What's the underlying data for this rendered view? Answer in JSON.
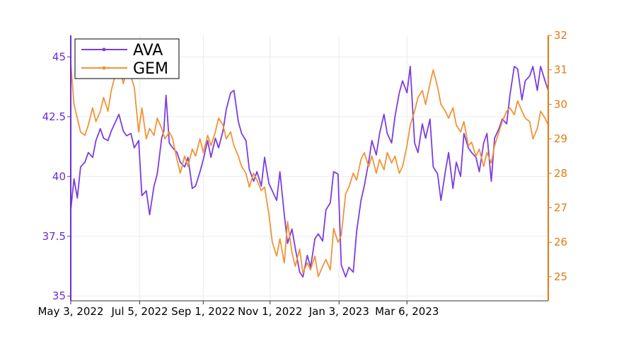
{
  "chart_data": {
    "type": "line",
    "title": "",
    "xlabel": "",
    "legend": {
      "placement": "top-left",
      "entries": [
        "AVA",
        "GEM"
      ]
    },
    "grid": true,
    "x_ticks": [
      "May 3, 2022",
      "Jul 5, 2022",
      "Sep 1, 2022",
      "Nov 1, 2022",
      "Jan 3, 2023",
      "Mar 6, 2023"
    ],
    "y_left": {
      "ticks": [
        "35",
        "37.5",
        "40",
        "42.5",
        "45"
      ],
      "range": [
        34.8,
        45.9
      ],
      "color": "#6a2ed0"
    },
    "y_right": {
      "ticks": [
        "25",
        "26",
        "27",
        "28",
        "29",
        "30",
        "31",
        "32"
      ],
      "range": [
        24.3,
        32.0
      ],
      "color": "#e07b10"
    },
    "series": [
      {
        "name": "AVA",
        "axis": "left",
        "color": "#7a3ee0",
        "points": [
          [
            "2022-05-03",
            38.6
          ],
          [
            "2022-05-06",
            39.9
          ],
          [
            "2022-05-09",
            39.1
          ],
          [
            "2022-05-12",
            40.4
          ],
          [
            "2022-05-16",
            40.6
          ],
          [
            "2022-05-19",
            41.0
          ],
          [
            "2022-05-23",
            40.8
          ],
          [
            "2022-05-26",
            41.5
          ],
          [
            "2022-05-30",
            42.0
          ],
          [
            "2022-06-02",
            41.6
          ],
          [
            "2022-06-06",
            41.5
          ],
          [
            "2022-06-09",
            41.9
          ],
          [
            "2022-06-13",
            42.3
          ],
          [
            "2022-06-16",
            42.6
          ],
          [
            "2022-06-20",
            41.9
          ],
          [
            "2022-06-23",
            41.7
          ],
          [
            "2022-06-27",
            41.8
          ],
          [
            "2022-06-30",
            41.2
          ],
          [
            "2022-07-04",
            41.5
          ],
          [
            "2022-07-07",
            39.2
          ],
          [
            "2022-07-11",
            39.4
          ],
          [
            "2022-07-14",
            38.4
          ],
          [
            "2022-07-18",
            39.6
          ],
          [
            "2022-07-21",
            40.1
          ],
          [
            "2022-07-25",
            41.6
          ],
          [
            "2022-07-27",
            41.9
          ],
          [
            "2022-07-29",
            43.4
          ],
          [
            "2022-08-01",
            41.4
          ],
          [
            "2022-08-04",
            41.2
          ],
          [
            "2022-08-08",
            41.0
          ],
          [
            "2022-08-11",
            40.6
          ],
          [
            "2022-08-15",
            40.4
          ],
          [
            "2022-08-18",
            40.8
          ],
          [
            "2022-08-22",
            39.5
          ],
          [
            "2022-08-25",
            39.6
          ],
          [
            "2022-08-29",
            40.2
          ],
          [
            "2022-09-01",
            40.7
          ],
          [
            "2022-09-05",
            41.5
          ],
          [
            "2022-09-08",
            40.8
          ],
          [
            "2022-09-12",
            41.6
          ],
          [
            "2022-09-15",
            41.2
          ],
          [
            "2022-09-19",
            41.9
          ],
          [
            "2022-09-22",
            42.8
          ],
          [
            "2022-09-26",
            43.5
          ],
          [
            "2022-09-29",
            43.6
          ],
          [
            "2022-10-03",
            42.3
          ],
          [
            "2022-10-06",
            41.8
          ],
          [
            "2022-10-10",
            41.5
          ],
          [
            "2022-10-13",
            40.3
          ],
          [
            "2022-10-17",
            39.8
          ],
          [
            "2022-10-20",
            40.2
          ],
          [
            "2022-10-24",
            39.6
          ],
          [
            "2022-10-27",
            40.8
          ],
          [
            "2022-10-31",
            39.7
          ],
          [
            "2022-11-03",
            39.4
          ],
          [
            "2022-11-07",
            39.0
          ],
          [
            "2022-11-10",
            40.2
          ],
          [
            "2022-11-14",
            38.4
          ],
          [
            "2022-11-17",
            37.2
          ],
          [
            "2022-11-21",
            37.8
          ],
          [
            "2022-11-24",
            37.0
          ],
          [
            "2022-11-28",
            36.0
          ],
          [
            "2022-12-01",
            35.8
          ],
          [
            "2022-12-05",
            36.7
          ],
          [
            "2022-12-08",
            36.2
          ],
          [
            "2022-12-12",
            37.4
          ],
          [
            "2022-12-15",
            37.6
          ],
          [
            "2022-12-19",
            37.3
          ],
          [
            "2022-12-22",
            38.6
          ],
          [
            "2022-12-26",
            38.9
          ],
          [
            "2022-12-29",
            40.2
          ],
          [
            "2023-01-02",
            40.1
          ],
          [
            "2023-01-05",
            36.3
          ],
          [
            "2023-01-09",
            35.8
          ],
          [
            "2023-01-12",
            36.2
          ],
          [
            "2023-01-16",
            36.0
          ],
          [
            "2023-01-19",
            37.7
          ],
          [
            "2023-01-23",
            39.0
          ],
          [
            "2023-01-26",
            39.6
          ],
          [
            "2023-01-30",
            40.6
          ],
          [
            "2023-02-02",
            41.5
          ],
          [
            "2023-02-06",
            40.9
          ],
          [
            "2023-02-09",
            41.8
          ],
          [
            "2023-02-13",
            42.6
          ],
          [
            "2023-02-16",
            41.8
          ],
          [
            "2023-02-20",
            41.4
          ],
          [
            "2023-02-23",
            42.5
          ],
          [
            "2023-02-27",
            43.5
          ],
          [
            "2023-03-02",
            44.0
          ],
          [
            "2023-03-06",
            43.5
          ],
          [
            "2023-03-09",
            44.6
          ],
          [
            "2023-03-13",
            41.4
          ],
          [
            "2023-03-16",
            41.0
          ],
          [
            "2023-03-20",
            42.2
          ],
          [
            "2023-03-23",
            41.6
          ],
          [
            "2023-03-27",
            42.4
          ],
          [
            "2023-03-30",
            40.4
          ],
          [
            "2023-04-03",
            40.1
          ],
          [
            "2023-04-06",
            39.0
          ],
          [
            "2023-04-10",
            40.2
          ],
          [
            "2023-04-13",
            41.0
          ],
          [
            "2023-04-17",
            39.5
          ],
          [
            "2023-04-20",
            40.6
          ],
          [
            "2023-04-24",
            40.0
          ],
          [
            "2023-04-27",
            41.8
          ],
          [
            "2023-05-01",
            41.2
          ],
          [
            "2023-05-04",
            41.0
          ],
          [
            "2023-05-08",
            40.8
          ],
          [
            "2023-05-11",
            40.2
          ],
          [
            "2023-05-15",
            41.4
          ],
          [
            "2023-05-18",
            41.8
          ],
          [
            "2023-05-22",
            39.8
          ],
          [
            "2023-05-25",
            41.6
          ],
          [
            "2023-05-29",
            42.0
          ],
          [
            "2023-06-01",
            42.4
          ],
          [
            "2023-06-05",
            42.2
          ],
          [
            "2023-06-08",
            43.4
          ],
          [
            "2023-06-12",
            44.6
          ],
          [
            "2023-06-15",
            44.5
          ],
          [
            "2023-06-19",
            43.2
          ],
          [
            "2023-06-22",
            44.0
          ],
          [
            "2023-06-26",
            44.2
          ],
          [
            "2023-06-29",
            44.6
          ],
          [
            "2023-07-03",
            43.6
          ],
          [
            "2023-07-06",
            44.6
          ],
          [
            "2023-07-10",
            44.0
          ],
          [
            "2023-07-13",
            43.6
          ]
        ]
      },
      {
        "name": "GEM",
        "axis": "right",
        "color": "#f09438",
        "points": [
          [
            "2022-05-03",
            31.2
          ],
          [
            "2022-05-06",
            30.0
          ],
          [
            "2022-05-09",
            29.6
          ],
          [
            "2022-05-12",
            29.2
          ],
          [
            "2022-05-16",
            29.1
          ],
          [
            "2022-05-19",
            29.4
          ],
          [
            "2022-05-23",
            29.9
          ],
          [
            "2022-05-26",
            29.5
          ],
          [
            "2022-05-30",
            29.8
          ],
          [
            "2022-06-02",
            30.2
          ],
          [
            "2022-06-06",
            29.8
          ],
          [
            "2022-06-09",
            30.4
          ],
          [
            "2022-06-13",
            30.9
          ],
          [
            "2022-06-16",
            31.2
          ],
          [
            "2022-06-20",
            30.6
          ],
          [
            "2022-06-23",
            31.0
          ],
          [
            "2022-06-27",
            30.8
          ],
          [
            "2022-06-30",
            30.5
          ],
          [
            "2022-07-04",
            29.2
          ],
          [
            "2022-07-07",
            29.9
          ],
          [
            "2022-07-11",
            29.0
          ],
          [
            "2022-07-14",
            29.3
          ],
          [
            "2022-07-18",
            29.1
          ],
          [
            "2022-07-21",
            29.6
          ],
          [
            "2022-07-25",
            29.3
          ],
          [
            "2022-07-28",
            29.0
          ],
          [
            "2022-08-01",
            29.2
          ],
          [
            "2022-08-04",
            29.0
          ],
          [
            "2022-08-08",
            28.4
          ],
          [
            "2022-08-11",
            28.0
          ],
          [
            "2022-08-15",
            28.5
          ],
          [
            "2022-08-18",
            28.2
          ],
          [
            "2022-08-22",
            28.7
          ],
          [
            "2022-08-25",
            28.5
          ],
          [
            "2022-08-29",
            29.0
          ],
          [
            "2022-09-01",
            28.6
          ],
          [
            "2022-09-05",
            29.1
          ],
          [
            "2022-09-08",
            28.8
          ],
          [
            "2022-09-12",
            29.2
          ],
          [
            "2022-09-15",
            29.6
          ],
          [
            "2022-09-19",
            29.4
          ],
          [
            "2022-09-22",
            29.0
          ],
          [
            "2022-09-26",
            29.2
          ],
          [
            "2022-09-29",
            28.8
          ],
          [
            "2022-10-03",
            28.5
          ],
          [
            "2022-10-06",
            28.2
          ],
          [
            "2022-10-10",
            28.0
          ],
          [
            "2022-10-13",
            27.6
          ],
          [
            "2022-10-17",
            28.0
          ],
          [
            "2022-10-20",
            27.8
          ],
          [
            "2022-10-24",
            27.5
          ],
          [
            "2022-10-27",
            27.6
          ],
          [
            "2022-10-31",
            26.8
          ],
          [
            "2022-11-03",
            26.0
          ],
          [
            "2022-11-07",
            25.6
          ],
          [
            "2022-11-10",
            26.1
          ],
          [
            "2022-11-14",
            25.4
          ],
          [
            "2022-11-17",
            26.6
          ],
          [
            "2022-11-21",
            25.7
          ],
          [
            "2022-11-24",
            25.3
          ],
          [
            "2022-11-28",
            25.8
          ],
          [
            "2022-12-01",
            25.1
          ],
          [
            "2022-12-05",
            25.4
          ],
          [
            "2022-12-08",
            25.2
          ],
          [
            "2022-12-12",
            25.6
          ],
          [
            "2022-12-15",
            25.0
          ],
          [
            "2022-12-19",
            25.3
          ],
          [
            "2022-12-22",
            25.5
          ],
          [
            "2022-12-26",
            25.2
          ],
          [
            "2022-12-29",
            26.4
          ],
          [
            "2023-01-02",
            26.0
          ],
          [
            "2023-01-05",
            26.2
          ],
          [
            "2023-01-09",
            27.4
          ],
          [
            "2023-01-12",
            27.6
          ],
          [
            "2023-01-16",
            28.0
          ],
          [
            "2023-01-19",
            27.8
          ],
          [
            "2023-01-23",
            28.4
          ],
          [
            "2023-01-26",
            28.6
          ],
          [
            "2023-01-30",
            28.2
          ],
          [
            "2023-02-02",
            28.5
          ],
          [
            "2023-02-06",
            28.0
          ],
          [
            "2023-02-09",
            28.4
          ],
          [
            "2023-02-13",
            28.1
          ],
          [
            "2023-02-16",
            28.6
          ],
          [
            "2023-02-20",
            28.3
          ],
          [
            "2023-02-23",
            28.5
          ],
          [
            "2023-02-27",
            28.0
          ],
          [
            "2023-03-02",
            28.2
          ],
          [
            "2023-03-06",
            28.8
          ],
          [
            "2023-03-09",
            29.4
          ],
          [
            "2023-03-13",
            29.8
          ],
          [
            "2023-03-16",
            30.2
          ],
          [
            "2023-03-20",
            30.4
          ],
          [
            "2023-03-23",
            30.0
          ],
          [
            "2023-03-27",
            30.6
          ],
          [
            "2023-03-30",
            31.0
          ],
          [
            "2023-04-03",
            30.5
          ],
          [
            "2023-04-06",
            30.0
          ],
          [
            "2023-04-10",
            29.8
          ],
          [
            "2023-04-13",
            29.6
          ],
          [
            "2023-04-17",
            29.9
          ],
          [
            "2023-04-20",
            29.4
          ],
          [
            "2023-04-24",
            29.2
          ],
          [
            "2023-04-27",
            29.5
          ],
          [
            "2023-05-01",
            28.8
          ],
          [
            "2023-05-04",
            28.9
          ],
          [
            "2023-05-08",
            28.5
          ],
          [
            "2023-05-11",
            28.7
          ],
          [
            "2023-05-15",
            28.2
          ],
          [
            "2023-05-18",
            28.6
          ],
          [
            "2023-05-22",
            28.3
          ],
          [
            "2023-05-25",
            28.8
          ],
          [
            "2023-05-29",
            29.2
          ],
          [
            "2023-06-01",
            29.5
          ],
          [
            "2023-06-05",
            29.8
          ],
          [
            "2023-06-08",
            29.9
          ],
          [
            "2023-06-12",
            29.7
          ],
          [
            "2023-06-15",
            30.1
          ],
          [
            "2023-06-19",
            29.8
          ],
          [
            "2023-06-22",
            29.6
          ],
          [
            "2023-06-26",
            29.5
          ],
          [
            "2023-06-29",
            29.0
          ],
          [
            "2023-07-03",
            29.3
          ],
          [
            "2023-07-06",
            29.8
          ],
          [
            "2023-07-10",
            29.6
          ],
          [
            "2023-07-13",
            29.4
          ]
        ]
      }
    ]
  }
}
